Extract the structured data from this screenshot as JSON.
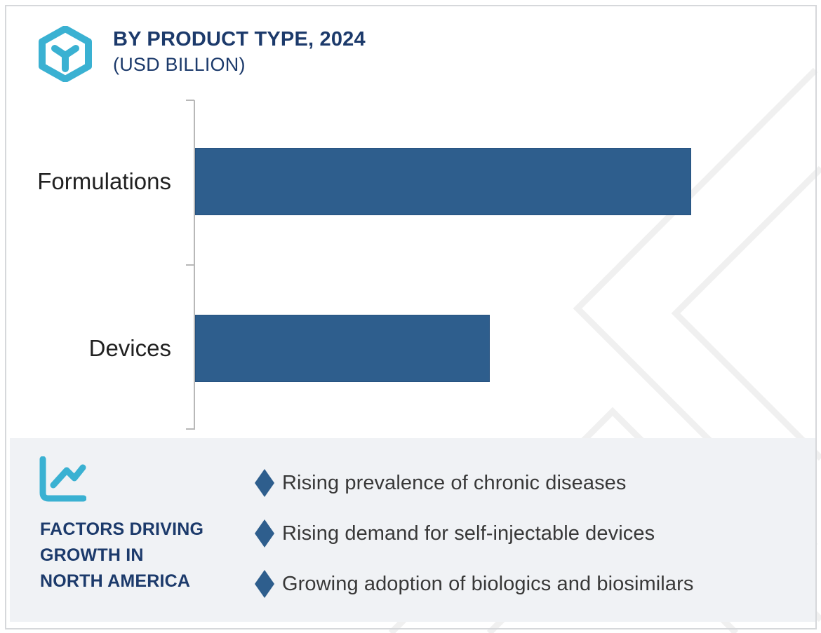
{
  "header": {
    "logo_icon": "hexagon-y-logo",
    "title": "BY PRODUCT TYPE, 2024",
    "subtitle": "(USD BILLION)"
  },
  "chart_data": {
    "type": "bar",
    "orientation": "horizontal",
    "title": "BY PRODUCT TYPE, 2024",
    "subtitle": "(USD BILLION)",
    "unit": "USD Billion",
    "categories": [
      "Formulations",
      "Devices"
    ],
    "values_relative": [
      1.0,
      0.594
    ],
    "value_labels_shown": false,
    "axis": {
      "value_axis_visible": false,
      "category_axis_visible": true,
      "gridlines": false,
      "tick_marks": 3
    },
    "bar_color": "#2e5e8d",
    "legend_position": "none"
  },
  "factors_panel": {
    "icon": "line-chart-icon",
    "heading_lines": [
      "FACTORS DRIVING",
      "GROWTH IN",
      "NORTH AMERICA"
    ],
    "bullet_icon": "diamond-bullet",
    "items": [
      "Rising prevalence of chronic diseases",
      "Rising demand for self-injectable devices",
      "Growing adoption of biologics and biosimilars"
    ]
  },
  "colors": {
    "navy": "#1c3a6b",
    "teal": "#3ab1d2",
    "bar_blue": "#2e5e8d",
    "bar_border": "#26527f",
    "panel_bg": "#f0f2f5",
    "watermark": "#f0f0f0",
    "category_text": "#212121",
    "bullet_text": "#383838",
    "axis_gray": "#b8b8b8",
    "frame_gray": "#d6d8db"
  }
}
